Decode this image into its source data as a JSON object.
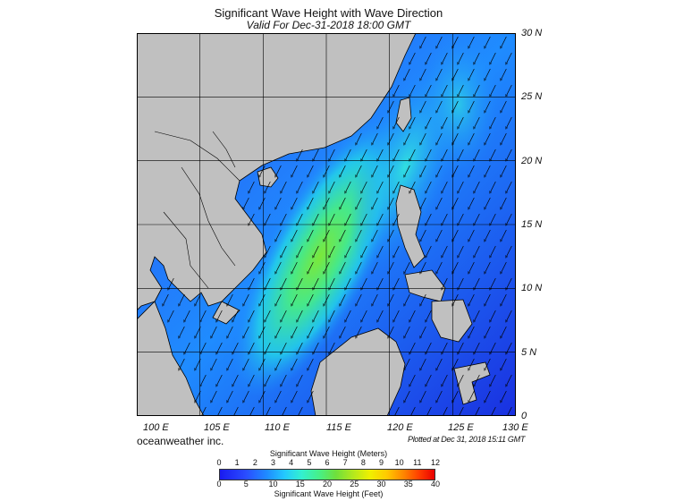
{
  "title": "Significant Wave Height with Wave Direction",
  "valid": "Valid For Dec-31-2018 18:00 GMT",
  "lat_labels": [
    "30 N",
    "25 N",
    "20 N",
    "15 N",
    "10 N",
    "5 N",
    "0"
  ],
  "lon_labels": [
    "100 E",
    "105 E",
    "110 E",
    "115 E",
    "120 E",
    "125 E",
    "130 E"
  ],
  "company": "oceanweather inc.",
  "plotted": "Plotted at Dec 31, 2018 15:11 GMT",
  "legend": {
    "meters_title": "Significant Wave Height (Meters)",
    "meters_ticks": [
      "0",
      "1",
      "2",
      "3",
      "4",
      "5",
      "6",
      "7",
      "8",
      "9",
      "10",
      "11",
      "12"
    ],
    "feet_title": "Significant Wave Height (Feet)",
    "feet_ticks": [
      "0",
      "5",
      "10",
      "15",
      "20",
      "25",
      "30",
      "35",
      "40"
    ]
  },
  "colors": {
    "land": "#c0c0c0",
    "border": "#000000",
    "low": "#1a1af0",
    "mid": "#23c8ff",
    "high": "#6ee03c"
  },
  "wave_direction": "from northeast toward southwest"
}
